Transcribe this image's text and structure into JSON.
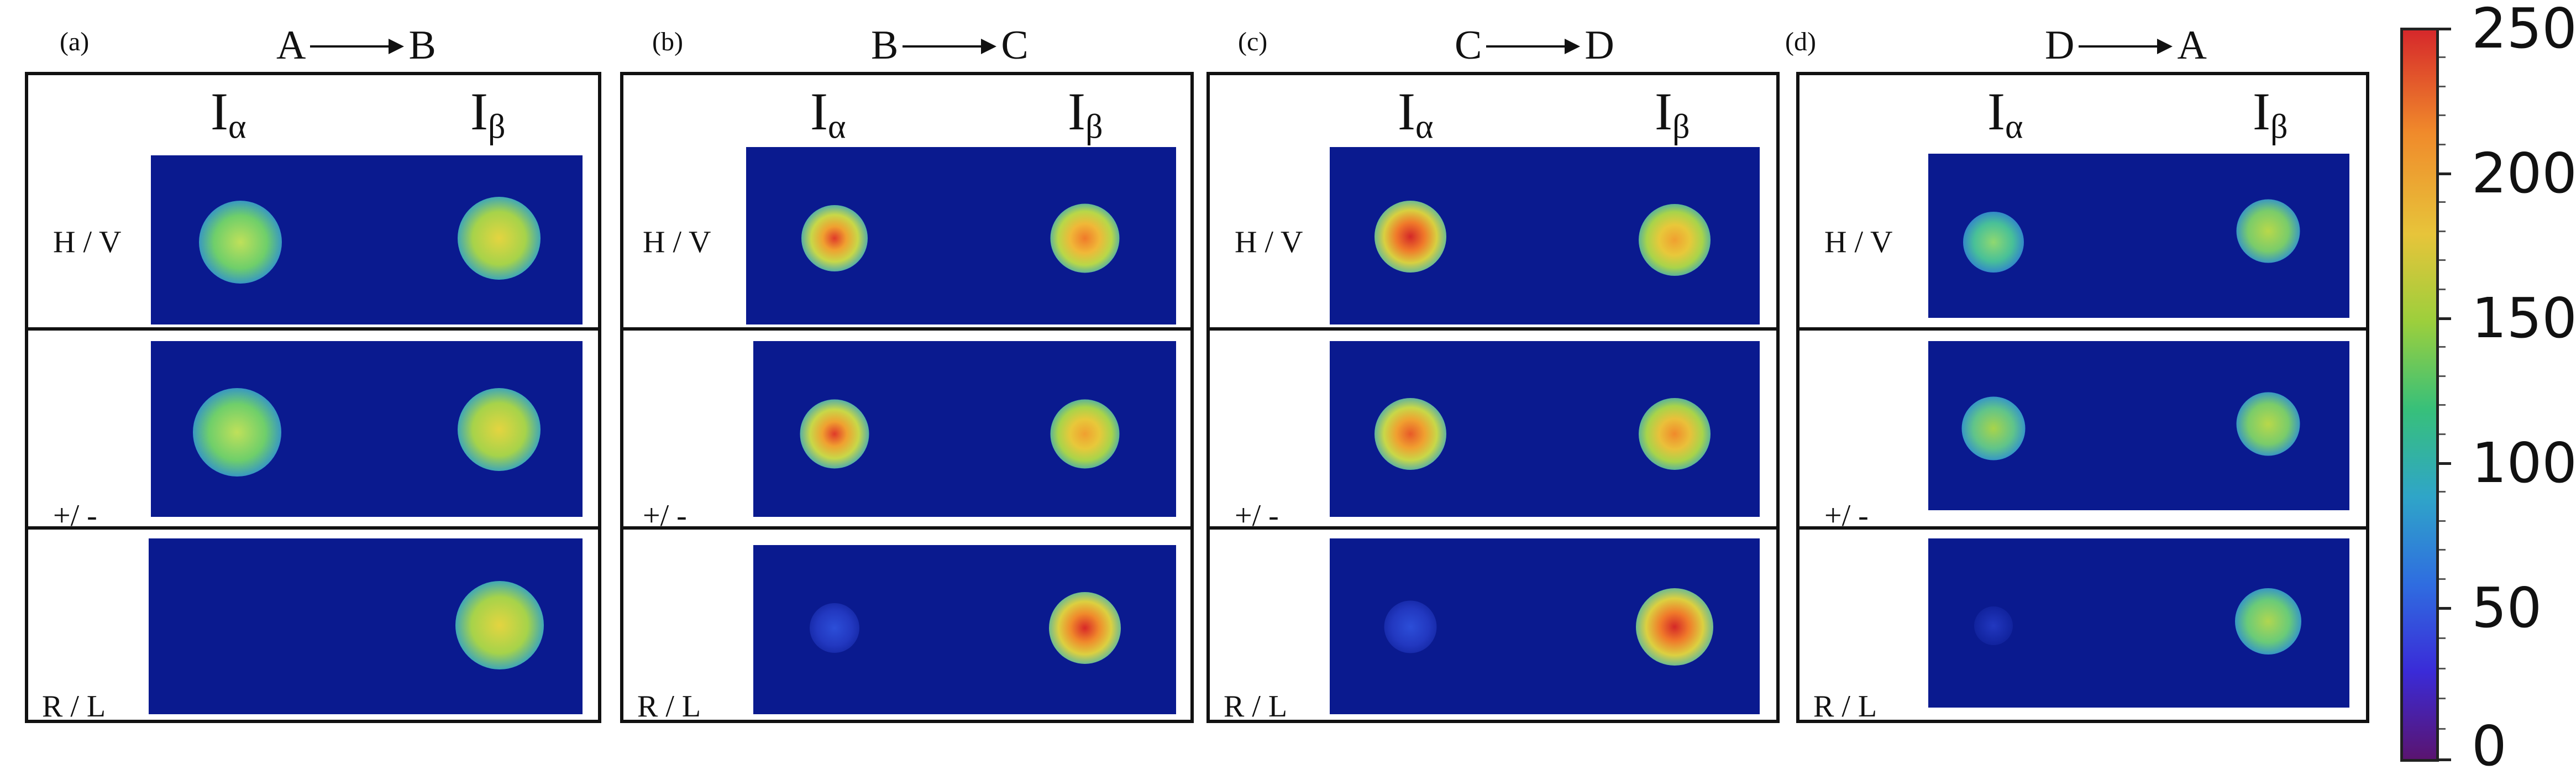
{
  "panels": [
    {
      "letter": "(a)",
      "from": "A",
      "to": "B",
      "ia": "I",
      "ia_sub": "α",
      "ib": "I",
      "ib_sub": "β",
      "rows": [
        "H / V",
        "+/ -",
        "R / L"
      ]
    },
    {
      "letter": "(b)",
      "from": "B",
      "to": "C",
      "ia": "I",
      "ia_sub": "α",
      "ib": "I",
      "ib_sub": "β",
      "rows": [
        "H / V",
        "+/ -",
        "R / L"
      ]
    },
    {
      "letter": "(c)",
      "from": "C",
      "to": "D",
      "ia": "I",
      "ia_sub": "α",
      "ib": "I",
      "ib_sub": "β",
      "rows": [
        "H / V",
        "+/ -",
        "R / L"
      ]
    },
    {
      "letter": "(d)",
      "from": "D",
      "to": "A",
      "ia": "I",
      "ia_sub": "α",
      "ib": "I",
      "ib_sub": "β",
      "rows": [
        "H / V",
        "+/ -",
        "R / L"
      ]
    }
  ],
  "colorbar": {
    "min": 0,
    "max": 250,
    "ticks": [
      "250",
      "200",
      "150",
      "100",
      "50",
      "0"
    ]
  },
  "colors": {
    "background": "#0a1a8f",
    "frame": "#111111"
  }
}
